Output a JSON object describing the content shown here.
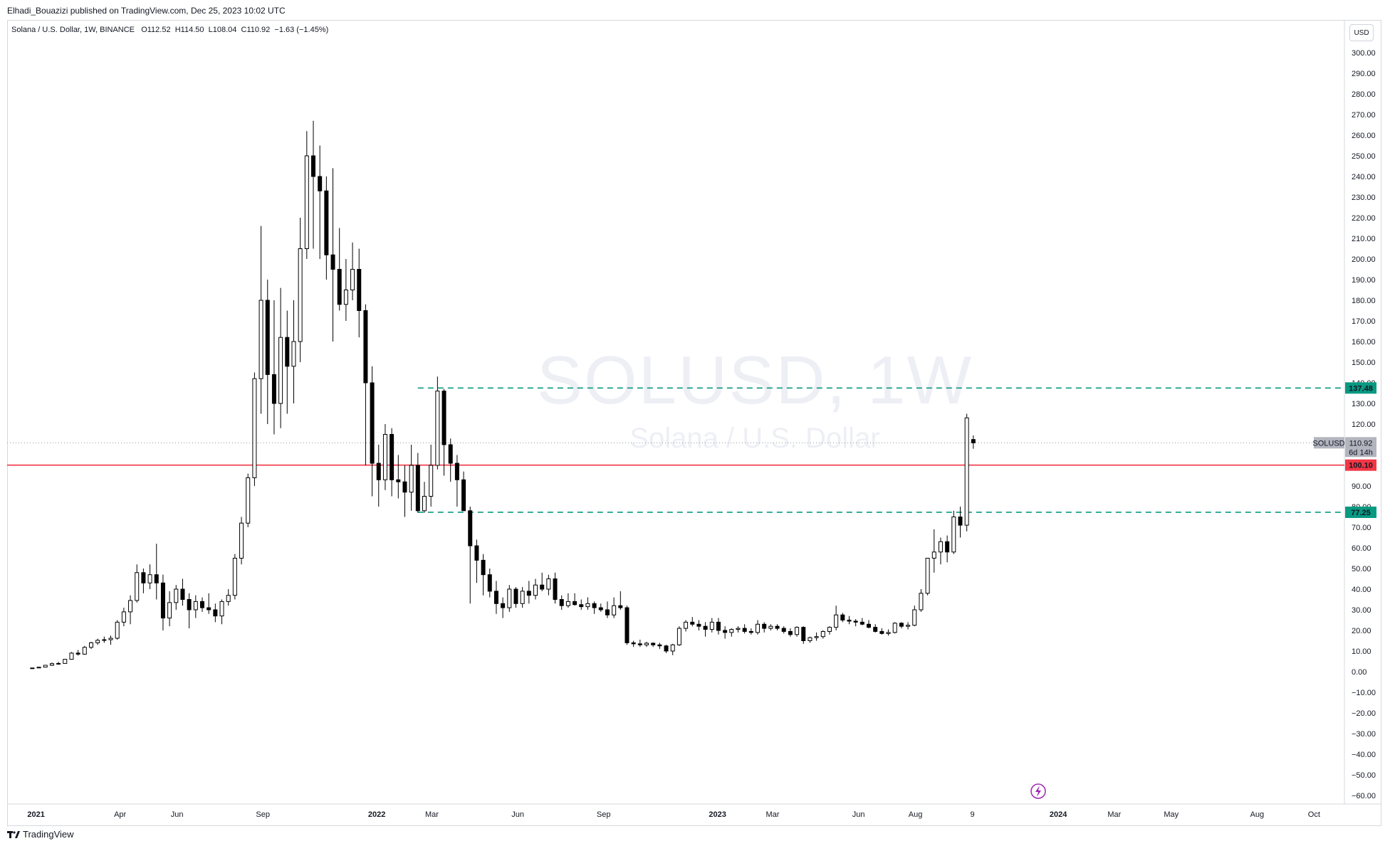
{
  "header": {
    "published_by": "Elhadi_Bouazizi published on TradingView.com, Dec 25, 2023 10:02 UTC"
  },
  "legend": {
    "text": "Solana / U.S. Dollar, 1W, BINANCE",
    "open_label": "O",
    "open": "112.52",
    "high_label": "H",
    "high": "114.50",
    "low_label": "L",
    "low": "108.04",
    "close_label": "C",
    "close": "110.92",
    "change": "−1.63 (−1.45%)"
  },
  "watermark": {
    "symbol": "SOLUSD, 1W",
    "description": "Solana / U.S. Dollar"
  },
  "currency_button": "USD",
  "footer": {
    "brand": "TradingView"
  },
  "colors": {
    "bull_fill": "#ffffff",
    "bear_fill": "#000000",
    "candle_outline": "#000000",
    "support_resistance_red": "#f23645",
    "dashed_green": "#089981",
    "label_green": "#089981",
    "price_tag_grey": "#b2b5be"
  },
  "icons": {
    "lightning": "lightning-icon",
    "brand": "tradingview-logo-icon"
  },
  "chart_data": {
    "type": "candlestick",
    "title": "Solana / U.S. Dollar",
    "symbol": "SOLUSD",
    "interval": "1W",
    "exchange": "BINANCE",
    "grid": false,
    "y_axis": {
      "ticks": [
        "300.00",
        "290.00",
        "280.00",
        "270.00",
        "260.00",
        "250.00",
        "240.00",
        "230.00",
        "220.00",
        "210.00",
        "200.00",
        "190.00",
        "180.00",
        "170.00",
        "160.00",
        "150.00",
        "140.00",
        "130.00",
        "120.00",
        "110.00",
        "100.00",
        "90.00",
        "80.00",
        "70.00",
        "60.00",
        "50.00",
        "40.00",
        "30.00",
        "20.00",
        "10.00",
        "0.00",
        "−10.00",
        "−20.00",
        "−30.00",
        "−40.00",
        "−50.00",
        "−60.00"
      ],
      "range": [
        -60,
        300
      ]
    },
    "x_axis": {
      "ticks": [
        "2021",
        "Apr",
        "Jun",
        "Sep",
        "2022",
        "Mar",
        "Jun",
        "Sep",
        "2023",
        "Mar",
        "Jun",
        "Aug",
        "9",
        "2024",
        "Mar",
        "May",
        "Aug",
        "Oct"
      ],
      "range": [
        "2020-12-01",
        "2024-11-01"
      ]
    },
    "horizontal_lines": [
      {
        "price": 137.48,
        "label": "137.48",
        "style": "dashed",
        "color": "#089981",
        "from": "2022-02-14"
      },
      {
        "price": 100.1,
        "label": "100.10",
        "style": "solid",
        "color": "#f23645",
        "from": "2020-12-01"
      },
      {
        "price": 77.25,
        "label": "77.25",
        "style": "dashed",
        "color": "#089981",
        "from": "2022-02-14"
      }
    ],
    "last_price": {
      "symbol": "SOLUSD",
      "price": "110.92",
      "countdown": "6d 14h",
      "value": 110.92
    },
    "start_date": "2020-12-28",
    "ohlc": [
      [
        1.5,
        1.9,
        1.4,
        1.8
      ],
      [
        1.8,
        2.3,
        1.7,
        2.2
      ],
      [
        2.2,
        3.3,
        2.1,
        3.1
      ],
      [
        3.1,
        4.4,
        2.8,
        3.9
      ],
      [
        3.9,
        4.7,
        3.4,
        4.0
      ],
      [
        4.0,
        6.2,
        3.9,
        6.0
      ],
      [
        6.0,
        9.5,
        5.8,
        9.0
      ],
      [
        9.0,
        10.5,
        7.8,
        8.5
      ],
      [
        8.5,
        12.5,
        8.2,
        11.8
      ],
      [
        11.8,
        14.5,
        11.0,
        14.0
      ],
      [
        14.0,
        16.0,
        13.0,
        15.2
      ],
      [
        15.2,
        17.0,
        14.0,
        15.5
      ],
      [
        15.5,
        17.5,
        13.0,
        16.2
      ],
      [
        16.2,
        25.0,
        15.5,
        24.0
      ],
      [
        24.0,
        31.0,
        22.0,
        29.0
      ],
      [
        29.0,
        37.0,
        23.0,
        34.5
      ],
      [
        34.5,
        52.0,
        33.5,
        48.0
      ],
      [
        48.0,
        50.0,
        38.0,
        43.0
      ],
      [
        43.0,
        52.0,
        40.0,
        47.0
      ],
      [
        47.0,
        62.0,
        35.0,
        43.0
      ],
      [
        43.0,
        47.0,
        20.0,
        26.0
      ],
      [
        26.0,
        39.0,
        22.0,
        33.5
      ],
      [
        33.5,
        42.0,
        30.0,
        40.0
      ],
      [
        40.0,
        45.0,
        32.0,
        35.0
      ],
      [
        35.0,
        38.0,
        21.0,
        30.0
      ],
      [
        30.0,
        37.0,
        26.0,
        34.0
      ],
      [
        34.0,
        36.0,
        29.0,
        31.0
      ],
      [
        31.0,
        38.0,
        28.0,
        30.0
      ],
      [
        30.0,
        33.0,
        24.0,
        27.0
      ],
      [
        27.0,
        35.0,
        23.0,
        34.0
      ],
      [
        34.0,
        40.0,
        32.0,
        37.0
      ],
      [
        37.0,
        57.0,
        35.0,
        55.0
      ],
      [
        55.0,
        75.0,
        52.0,
        72.0
      ],
      [
        72.0,
        96.0,
        70.0,
        94.0
      ],
      [
        94.0,
        145.0,
        90.0,
        142.0
      ],
      [
        142.0,
        216.0,
        125.0,
        180.0
      ],
      [
        180.0,
        190.0,
        120.0,
        144.0
      ],
      [
        144.0,
        180.0,
        115.0,
        130.0
      ],
      [
        130.0,
        186.0,
        118.0,
        162.0
      ],
      [
        162.0,
        175.0,
        125.0,
        148.0
      ],
      [
        148.0,
        180.0,
        130.0,
        160.0
      ],
      [
        160.0,
        220.0,
        150.0,
        205.0
      ],
      [
        205.0,
        262.0,
        200.0,
        250.0
      ],
      [
        250.0,
        267.0,
        205.0,
        240.0
      ],
      [
        240.0,
        255.0,
        200.0,
        233.0
      ],
      [
        233.0,
        240.0,
        190.0,
        202.0
      ],
      [
        202.0,
        244.0,
        160.0,
        195.0
      ],
      [
        195.0,
        215.0,
        175.0,
        178.0
      ],
      [
        178.0,
        200.0,
        170.0,
        185.0
      ],
      [
        185.0,
        208.0,
        180.0,
        195.0
      ],
      [
        195.0,
        205.0,
        162.0,
        175.0
      ],
      [
        175.0,
        178.0,
        100.0,
        140.0
      ],
      [
        140.0,
        148.0,
        85.0,
        101.0
      ],
      [
        101.0,
        110.0,
        80.0,
        93.0
      ],
      [
        93.0,
        120.0,
        88.0,
        115.0
      ],
      [
        115.0,
        118.0,
        85.0,
        93.0
      ],
      [
        93.0,
        105.0,
        84.0,
        92.0
      ],
      [
        92.0,
        100.0,
        75.0,
        87.0
      ],
      [
        87.0,
        110.0,
        78.0,
        100.0
      ],
      [
        100.0,
        106.0,
        77.0,
        78.0
      ],
      [
        78.0,
        92.0,
        77.0,
        85.0
      ],
      [
        85.0,
        110.0,
        80.0,
        100.0
      ],
      [
        100.0,
        143.0,
        98.0,
        136.0
      ],
      [
        136.0,
        137.0,
        95.0,
        110.0
      ],
      [
        110.0,
        113.0,
        92.0,
        101.0
      ],
      [
        101.0,
        105.0,
        80.0,
        93.0
      ],
      [
        93.0,
        97.0,
        78.0,
        78.0
      ],
      [
        78.0,
        80.0,
        33.0,
        61.0
      ],
      [
        61.0,
        64.0,
        43.0,
        54.0
      ],
      [
        54.0,
        57.0,
        37.0,
        47.0
      ],
      [
        47.0,
        50.0,
        36.0,
        39.0
      ],
      [
        39.0,
        44.0,
        28.0,
        33.0
      ],
      [
        33.0,
        36.0,
        26.0,
        31.0
      ],
      [
        31.0,
        42.0,
        29.0,
        40.0
      ],
      [
        40.0,
        41.0,
        31.0,
        33.0
      ],
      [
        33.0,
        41.0,
        31.0,
        39.0
      ],
      [
        39.0,
        44.0,
        33.0,
        37.0
      ],
      [
        37.0,
        45.0,
        35.0,
        42.0
      ],
      [
        42.0,
        48.0,
        39.0,
        40.0
      ],
      [
        40.0,
        47.0,
        37.0,
        45.0
      ],
      [
        45.0,
        48.0,
        33.0,
        35.0
      ],
      [
        35.0,
        37.0,
        30.0,
        32.0
      ],
      [
        32.0,
        38.0,
        31.0,
        34.0
      ],
      [
        34.0,
        38.0,
        32.0,
        32.5
      ],
      [
        32.5,
        35.0,
        30.0,
        31.5
      ],
      [
        31.5,
        36.0,
        30.0,
        33.0
      ],
      [
        33.0,
        34.0,
        28.0,
        31.0
      ],
      [
        31.0,
        33.0,
        29.0,
        30.0
      ],
      [
        30.0,
        34.0,
        26.0,
        27.5
      ],
      [
        27.5,
        36.0,
        26.0,
        32.0
      ],
      [
        32.0,
        39.0,
        30.0,
        31.0
      ],
      [
        31.0,
        32.0,
        13.0,
        14.0
      ],
      [
        14.0,
        15.0,
        12.0,
        13.5
      ],
      [
        13.5,
        15.5,
        12.0,
        13.0
      ],
      [
        13.0,
        14.5,
        12.0,
        13.8
      ],
      [
        13.8,
        14.2,
        12.0,
        13.0
      ],
      [
        13.0,
        14.0,
        11.0,
        12.5
      ],
      [
        12.5,
        13.0,
        9.0,
        10.0
      ],
      [
        10.0,
        13.5,
        8.0,
        13.0
      ],
      [
        13.0,
        22.0,
        12.5,
        21.0
      ],
      [
        21.0,
        25.0,
        19.5,
        24.0
      ],
      [
        24.0,
        26.5,
        22.0,
        23.0
      ],
      [
        23.0,
        25.0,
        20.0,
        22.0
      ],
      [
        22.0,
        24.0,
        17.0,
        20.5
      ],
      [
        20.5,
        26.0,
        19.0,
        24.0
      ],
      [
        24.0,
        26.0,
        18.0,
        20.0
      ],
      [
        20.0,
        22.0,
        16.0,
        19.0
      ],
      [
        19.0,
        21.0,
        17.0,
        20.5
      ],
      [
        20.5,
        22.0,
        19.0,
        21.0
      ],
      [
        21.0,
        23.0,
        18.5,
        19.5
      ],
      [
        19.5,
        21.0,
        18.0,
        19.0
      ],
      [
        19.0,
        25.0,
        18.0,
        23.0
      ],
      [
        23.0,
        24.0,
        19.0,
        21.0
      ],
      [
        21.0,
        23.0,
        20.0,
        22.0
      ],
      [
        22.0,
        23.0,
        20.0,
        21.0
      ],
      [
        21.0,
        22.0,
        18.5,
        19.5
      ],
      [
        19.5,
        21.0,
        17.0,
        18.0
      ],
      [
        18.0,
        22.0,
        17.0,
        21.5
      ],
      [
        21.5,
        22.0,
        13.5,
        15.0
      ],
      [
        15.0,
        17.0,
        14.0,
        16.5
      ],
      [
        16.5,
        19.0,
        15.0,
        17.0
      ],
      [
        17.0,
        20.0,
        16.0,
        19.5
      ],
      [
        19.5,
        22.0,
        18.0,
        21.5
      ],
      [
        21.5,
        32.0,
        20.0,
        27.5
      ],
      [
        27.5,
        28.5,
        24.0,
        25.0
      ],
      [
        25.0,
        27.0,
        23.0,
        24.5
      ],
      [
        24.5,
        25.5,
        22.0,
        24.0
      ],
      [
        24.0,
        26.0,
        22.5,
        23.0
      ],
      [
        23.0,
        25.0,
        21.0,
        21.5
      ],
      [
        21.5,
        23.0,
        19.0,
        19.5
      ],
      [
        19.5,
        21.0,
        18.0,
        18.5
      ],
      [
        18.5,
        20.5,
        17.5,
        19.0
      ],
      [
        19.0,
        24.0,
        18.5,
        23.5
      ],
      [
        23.5,
        24.0,
        21.0,
        22.0
      ],
      [
        22.0,
        24.0,
        20.5,
        22.5
      ],
      [
        22.5,
        32.0,
        22.0,
        30.0
      ],
      [
        30.0,
        40.0,
        29.0,
        38.0
      ],
      [
        38.0,
        55.0,
        37.0,
        55.0
      ],
      [
        55.0,
        69.0,
        48.0,
        58.0
      ],
      [
        58.0,
        65.0,
        52.0,
        63.0
      ],
      [
        63.0,
        66.0,
        53.0,
        58.0
      ],
      [
        58.0,
        78.0,
        57.0,
        75.0
      ],
      [
        75.0,
        80.0,
        65.0,
        71.0
      ],
      [
        71.0,
        125.0,
        68.0,
        123.0
      ],
      [
        112.52,
        114.5,
        108.04,
        110.92
      ]
    ]
  }
}
